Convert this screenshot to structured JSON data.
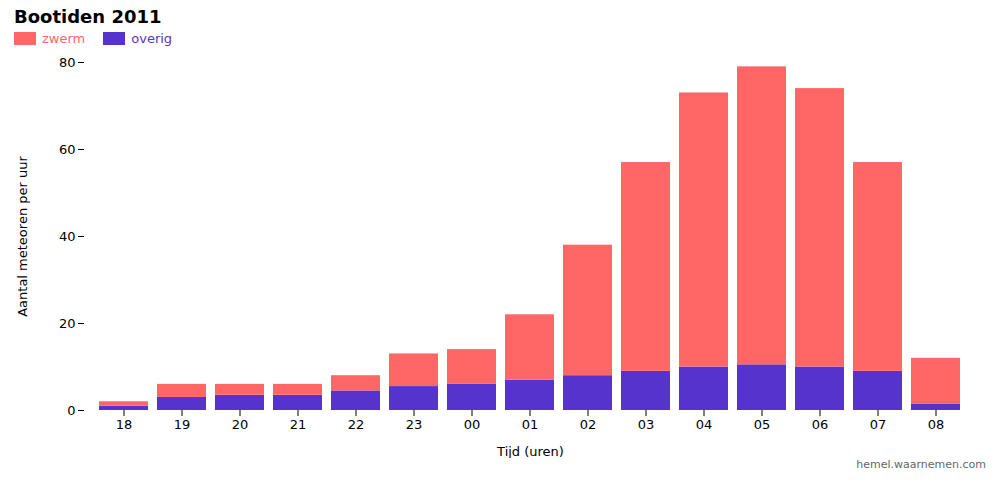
{
  "chart_data": {
    "type": "bar",
    "stacked": true,
    "title": "Bootiden 2011",
    "xlabel": "Tijd (uren)",
    "ylabel": "Aantal meteoren per uur",
    "categories": [
      "18",
      "19",
      "20",
      "21",
      "22",
      "23",
      "00",
      "01",
      "02",
      "03",
      "04",
      "05",
      "06",
      "07",
      "08"
    ],
    "series": [
      {
        "name": "overig",
        "color": "#5533CC",
        "values": [
          1.0,
          3.0,
          3.5,
          3.5,
          4.5,
          5.5,
          6.0,
          7.0,
          8.0,
          9.0,
          10.0,
          10.5,
          10.0,
          9.0,
          1.5
        ]
      },
      {
        "name": "zwerm",
        "color": "#FF6666",
        "values": [
          1.0,
          3.0,
          2.5,
          2.5,
          3.5,
          7.5,
          8.0,
          15.0,
          30.0,
          48.0,
          63.0,
          68.5,
          64.0,
          48.0,
          10.5
        ]
      }
    ],
    "ylim": [
      0,
      80
    ],
    "yticks": [
      0,
      20,
      40,
      60,
      80
    ],
    "grid": false,
    "legend": "upper left",
    "annotations": [
      "hemel.waarnemen.com"
    ]
  }
}
